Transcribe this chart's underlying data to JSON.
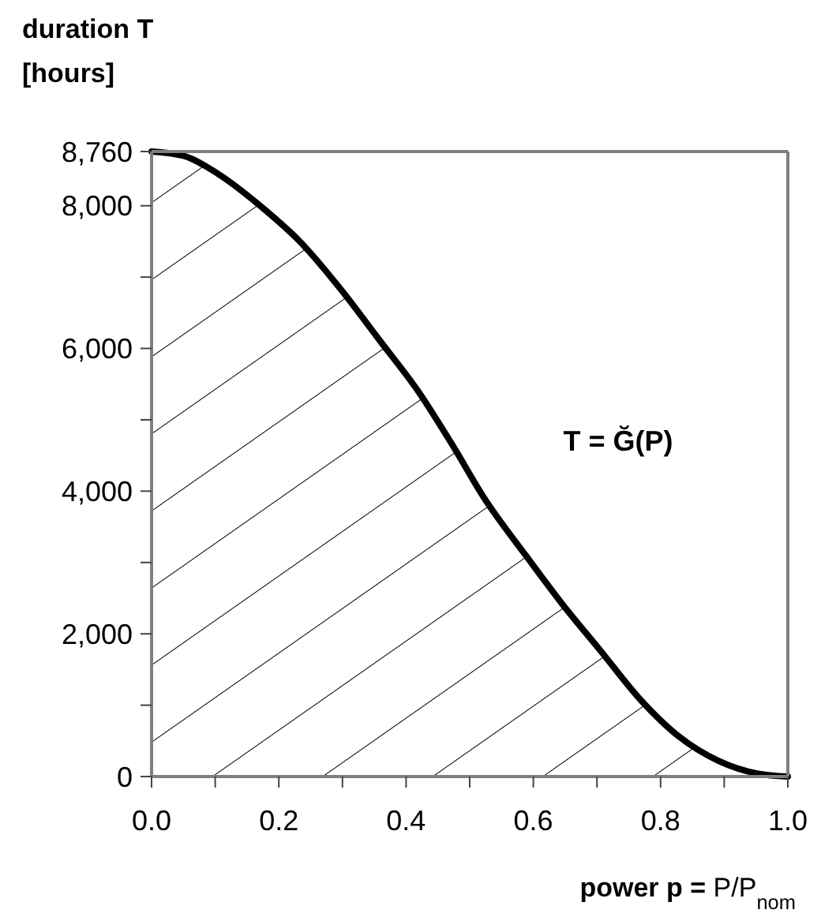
{
  "chart_data": {
    "type": "area",
    "xlabel": "power p = P/P$_{nom}$",
    "ylabel": "duration T [hours]",
    "x": [
      0,
      0.05,
      0.104,
      0.176,
      0.233,
      0.3,
      0.357,
      0.419,
      0.474,
      0.523,
      0.588,
      0.647,
      0.705,
      0.767,
      0.829,
      0.891,
      0.953,
      1.0
    ],
    "series": [
      {
        "name": "T = Ğ(P)",
        "color": "#000000",
        "values": [
          8760,
          8700,
          8450,
          7960,
          7500,
          6800,
          6130,
          5400,
          4630,
          3900,
          3100,
          2400,
          1770,
          1090,
          560,
          220,
          40,
          0
        ]
      }
    ],
    "xlim": [
      0,
      1
    ],
    "ylim": [
      0,
      8760
    ],
    "xticks": [
      {
        "value": 0,
        "label": "0.0"
      },
      {
        "value": 0.1,
        "label": null
      },
      {
        "value": 0.2,
        "label": "0.2"
      },
      {
        "value": 0.3,
        "label": null
      },
      {
        "value": 0.4,
        "label": "0.4"
      },
      {
        "value": 0.5,
        "label": null
      },
      {
        "value": 0.6,
        "label": "0.6"
      },
      {
        "value": 0.7,
        "label": null
      },
      {
        "value": 0.8,
        "label": "0.8"
      },
      {
        "value": 0.9,
        "label": null
      },
      {
        "value": 1,
        "label": "1.0"
      }
    ],
    "yticks": [
      0,
      {
        "value": 1000,
        "label": null
      },
      {
        "value": 2000,
        "label": "2,000"
      },
      {
        "value": 3000,
        "label": null
      },
      {
        "value": 4000,
        "label": "4,000"
      },
      {
        "value": 5000,
        "label": null
      },
      {
        "value": 6000,
        "label": "6,000"
      },
      {
        "value": 7000,
        "label": null
      },
      {
        "value": 8000,
        "label": "8,000"
      },
      {
        "value": 8760,
        "label": "8,760"
      }
    ],
    "grid": false
  }
}
